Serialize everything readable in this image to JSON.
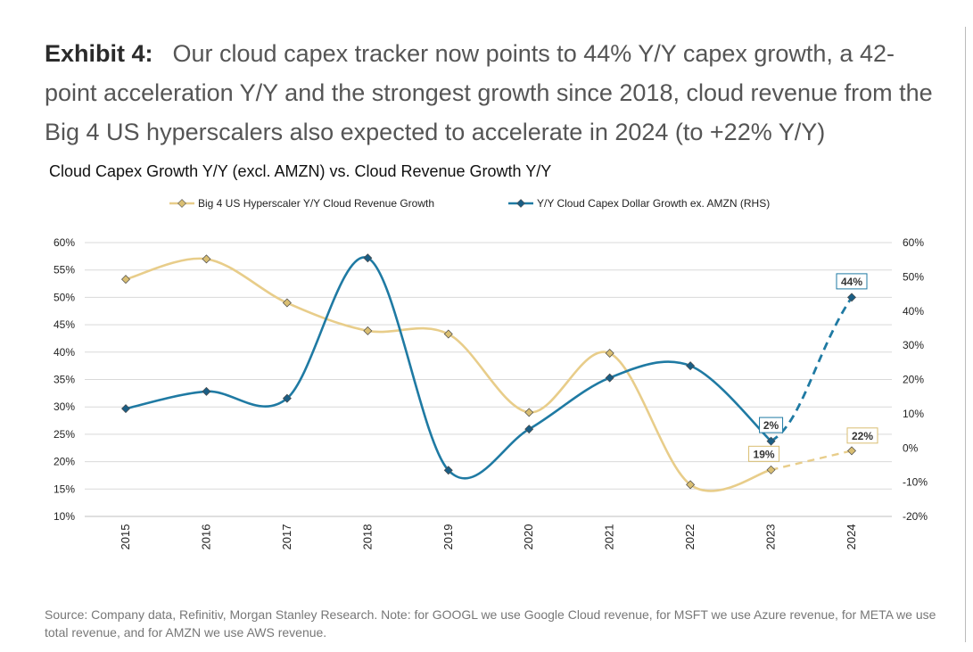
{
  "exhibit": {
    "label": "Exhibit 4:",
    "headline": "Our cloud capex tracker now points to 44% Y/Y capex growth, a 42-point acceleration Y/Y and the strongest growth since 2018, cloud revenue from the Big 4 US hyperscalers also expected to accelerate in 2024 (to +22% Y/Y)"
  },
  "source_note": "Source: Company data, Refinitiv, Morgan Stanley Research. Note: for GOOGL we use Google Cloud revenue, for MSFT we use Azure revenue, for META we use total revenue, and for AMZN we use AWS revenue.",
  "chart_data": {
    "type": "line",
    "title": "Cloud Capex Growth Y/Y (excl. AMZN) vs. Cloud Revenue Growth Y/Y",
    "legend_position": "top",
    "grid": true,
    "categories": [
      "2015",
      "2016",
      "2017",
      "2018",
      "2019",
      "2020",
      "2021",
      "2022",
      "2023",
      "2024"
    ],
    "left_axis": {
      "ylim": [
        10,
        60
      ],
      "ticks": [
        "10%",
        "15%",
        "20%",
        "25%",
        "30%",
        "35%",
        "40%",
        "45%",
        "50%",
        "55%",
        "60%"
      ]
    },
    "right_axis": {
      "ylim": [
        -20,
        60
      ],
      "ticks": [
        "-20%",
        "-10%",
        "0%",
        "10%",
        "20%",
        "30%",
        "40%",
        "50%",
        "60%"
      ]
    },
    "series": [
      {
        "name": "Big 4 US Hyperscaler Y/Y Cloud Revenue Growth",
        "axis": "left",
        "color": "#e8cd8a",
        "marker_color": "#d9be72",
        "values": [
          53.3,
          57,
          49,
          43.9,
          43.3,
          29,
          39.8,
          15.8,
          18.5,
          22
        ],
        "dashed_from_index": 8,
        "labels": [
          {
            "index": 8,
            "text": "19%"
          },
          {
            "index": 9,
            "text": "22%"
          }
        ]
      },
      {
        "name": "Y/Y Cloud Capex Dollar Growth ex. AMZN (RHS)",
        "axis": "right",
        "color": "#1f7aa3",
        "marker_color": "#1a5e85",
        "values": [
          11.5,
          16.5,
          14.5,
          55.5,
          -6.5,
          5.5,
          20.5,
          24,
          2,
          44
        ],
        "dashed_from_index": 8,
        "labels": [
          {
            "index": 8,
            "text": "2%"
          },
          {
            "index": 9,
            "text": "44%"
          }
        ]
      }
    ]
  }
}
